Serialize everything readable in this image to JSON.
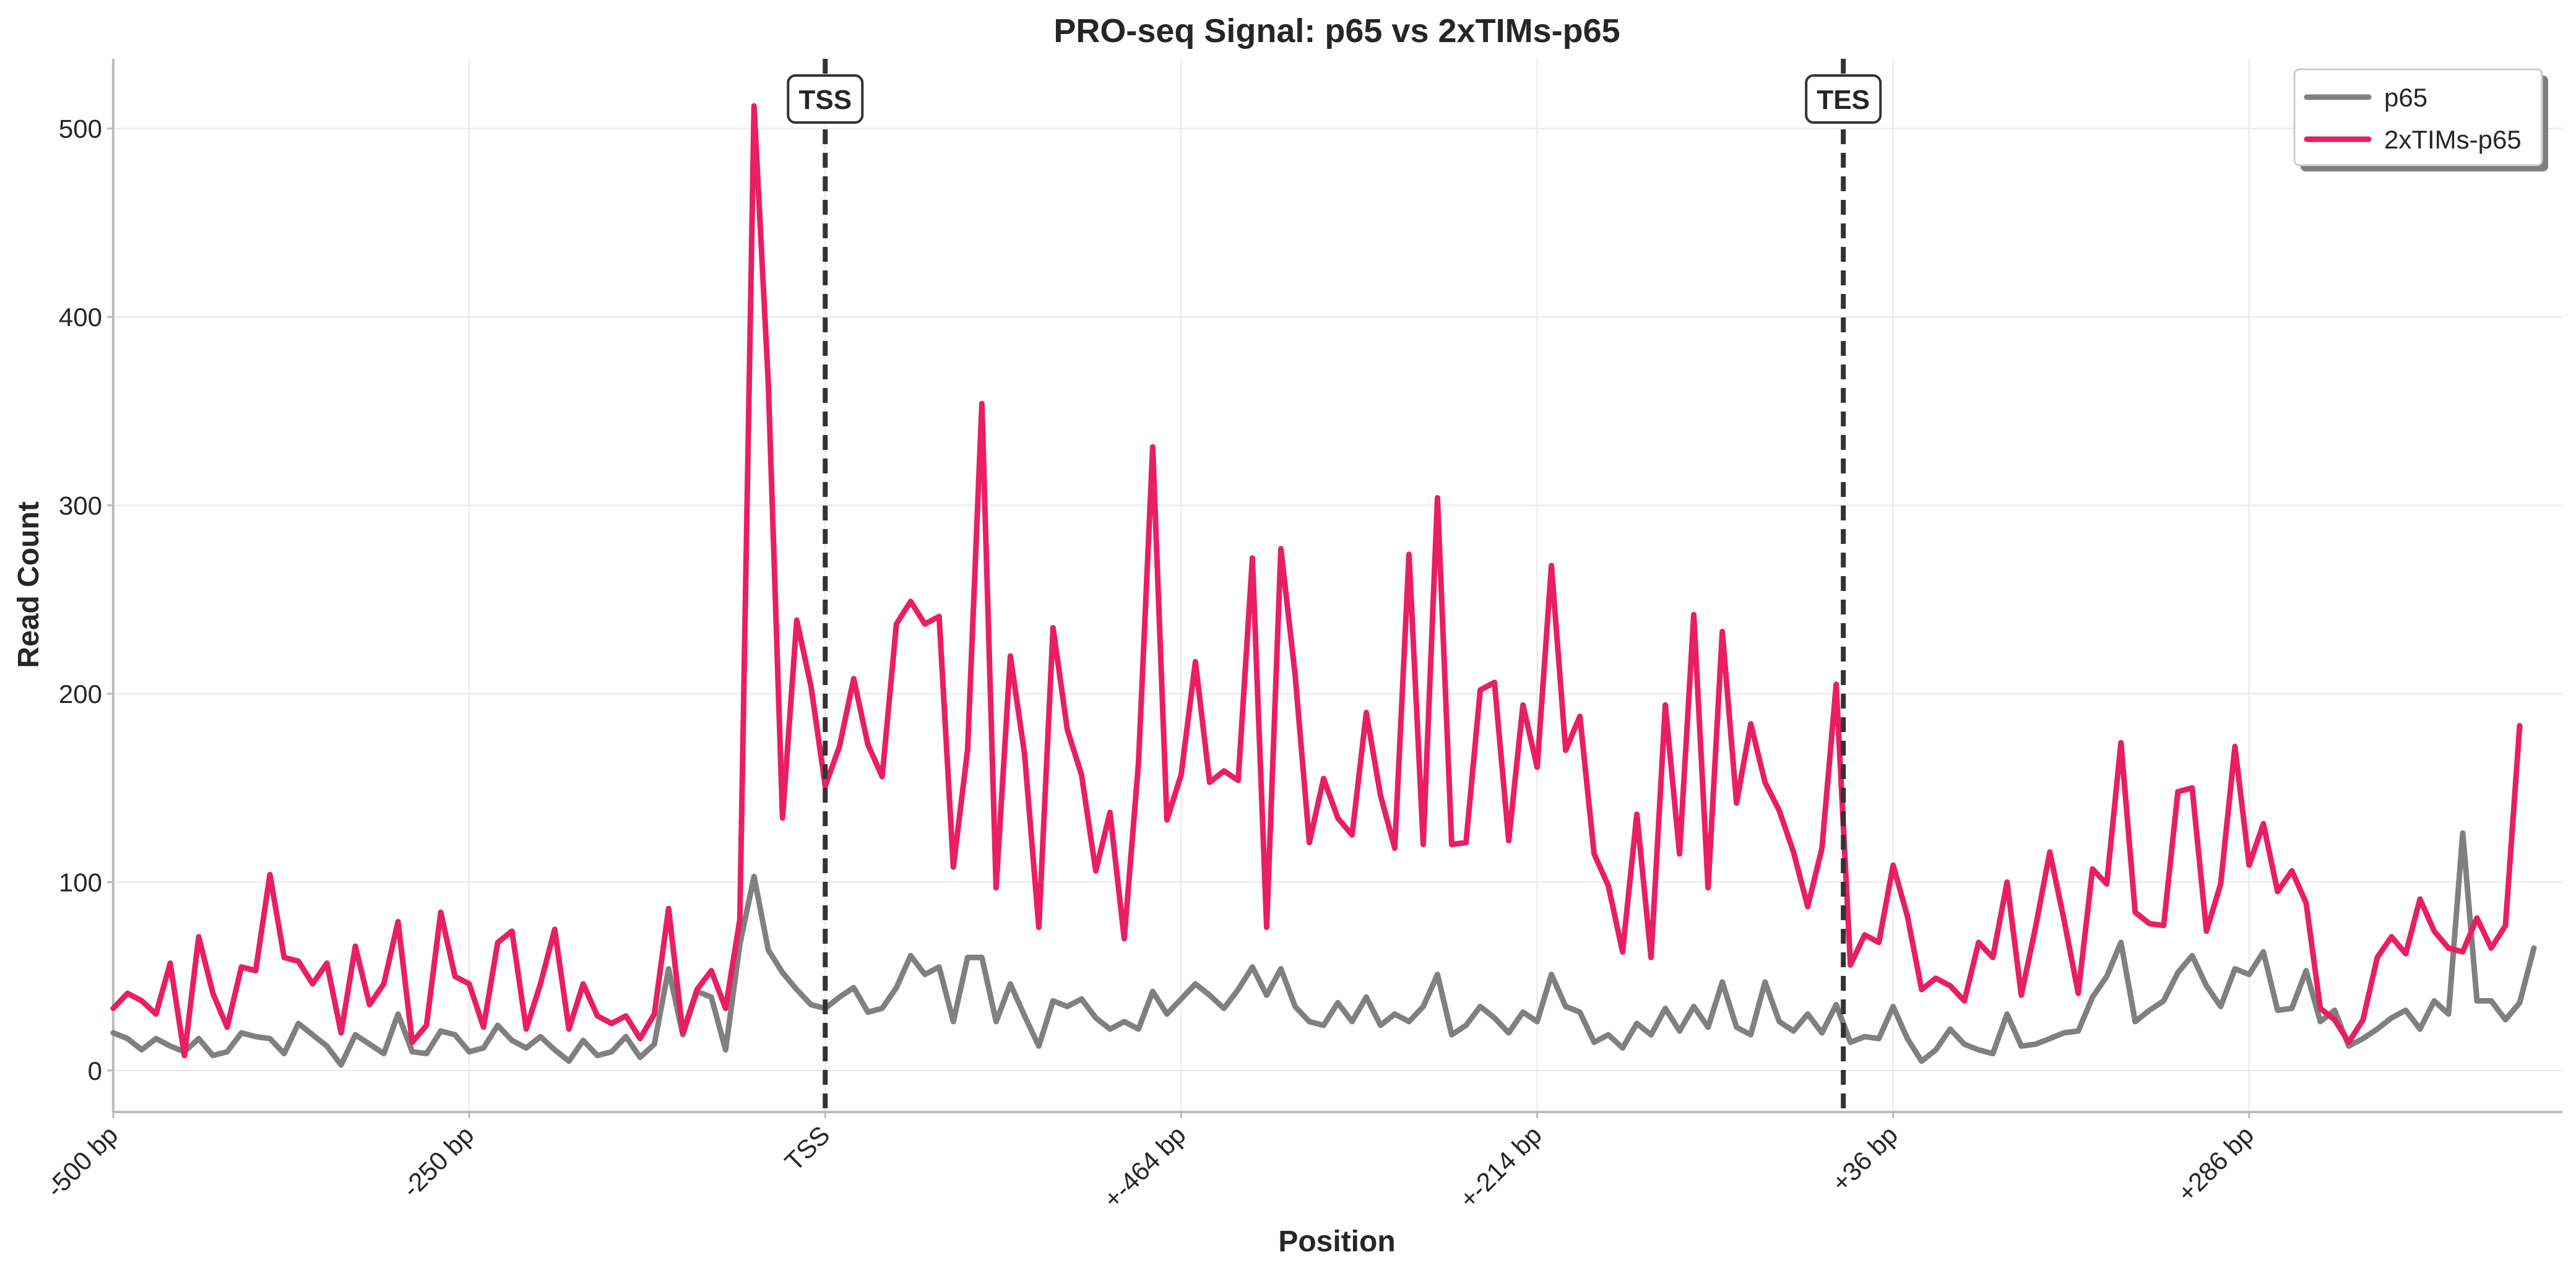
{
  "chart_data": {
    "type": "line",
    "title": "PRO-seq Signal: p65 vs 2xTIMs-p65",
    "xlabel": "Position",
    "ylabel": "Read Count",
    "ylim": [
      -22,
      537
    ],
    "yticks": [
      0,
      100,
      200,
      300,
      400,
      500
    ],
    "xlim": [
      0,
      172
    ],
    "xtick_positions": [
      0,
      25,
      50,
      75,
      100,
      125,
      150
    ],
    "xtick_labels": [
      "-500 bp",
      "-250 bp",
      "TSS",
      "+-464 bp",
      "+-214 bp",
      "+36 bp",
      "+286 bp"
    ],
    "grid": true,
    "legend_position": "top-right",
    "vertical_markers": [
      {
        "x": 50,
        "label": "TSS"
      },
      {
        "x": 121.5,
        "label": "TES"
      }
    ],
    "series": [
      {
        "name": "p65",
        "color": "#808080",
        "values": [
          20,
          17,
          11,
          17,
          13,
          10,
          17,
          8,
          10,
          20,
          18,
          17,
          9,
          25,
          19,
          13,
          3,
          19,
          14,
          9,
          30,
          10,
          9,
          21,
          19,
          10,
          12,
          24,
          16,
          12,
          18,
          11,
          5,
          16,
          8,
          10,
          18,
          7,
          14,
          54,
          19,
          42,
          39,
          11,
          67,
          103,
          64,
          52,
          43,
          35,
          33,
          39,
          44,
          31,
          33,
          44,
          61,
          51,
          55,
          26,
          60,
          60,
          26,
          46,
          29,
          13,
          37,
          34,
          38,
          28,
          22,
          26,
          22,
          42,
          30,
          38,
          46,
          40,
          33,
          43,
          55,
          40,
          54,
          34,
          26,
          24,
          36,
          26,
          39,
          24,
          30,
          26,
          34,
          51,
          19,
          24,
          34,
          28,
          20,
          31,
          26,
          51,
          34,
          31,
          15,
          19,
          12,
          25,
          19,
          33,
          21,
          34,
          23,
          47,
          23,
          19,
          47,
          26,
          21,
          30,
          20,
          35,
          15,
          18,
          17,
          34,
          17,
          5,
          11,
          22,
          14,
          11,
          9,
          30,
          13,
          14,
          17,
          20,
          21,
          39,
          50,
          68,
          26,
          32,
          37,
          52,
          61,
          45,
          34,
          54,
          51,
          63,
          32,
          33,
          53,
          26,
          32,
          13,
          17,
          22,
          28,
          32,
          22,
          37,
          30,
          126,
          37,
          37,
          27,
          36,
          65
        ]
      },
      {
        "name": "2xTIMs-p65",
        "color": "#e91e63",
        "values": [
          33,
          41,
          37,
          30,
          57,
          8,
          71,
          41,
          23,
          55,
          53,
          104,
          60,
          58,
          46,
          57,
          20,
          66,
          35,
          46,
          79,
          15,
          24,
          84,
          50,
          46,
          23,
          68,
          74,
          22,
          46,
          75,
          22,
          46,
          29,
          25,
          29,
          17,
          30,
          86,
          20,
          43,
          53,
          33,
          80,
          512,
          365,
          134,
          239,
          204,
          151,
          172,
          208,
          173,
          156,
          237,
          249,
          237,
          241,
          108,
          170,
          354,
          97,
          220,
          168,
          76,
          235,
          181,
          157,
          106,
          137,
          70,
          163,
          331,
          133,
          157,
          217,
          153,
          159,
          154,
          272,
          76,
          277,
          210,
          121,
          155,
          134,
          125,
          190,
          146,
          118,
          274,
          120,
          304,
          120,
          121,
          202,
          206,
          122,
          194,
          161,
          268,
          170,
          188,
          115,
          98,
          63,
          136,
          60,
          194,
          115,
          242,
          97,
          233,
          142,
          184,
          153,
          138,
          116,
          87,
          118,
          205,
          56,
          72,
          68,
          109,
          82,
          43,
          49,
          45,
          37,
          68,
          60,
          100,
          40,
          76,
          116,
          80,
          41,
          107,
          99,
          174,
          84,
          78,
          77,
          148,
          150,
          74,
          99,
          172,
          109,
          131,
          95,
          106,
          89,
          33,
          27,
          15,
          27,
          60,
          71,
          62,
          91,
          74,
          65,
          63,
          81,
          65,
          77,
          183
        ]
      }
    ]
  }
}
